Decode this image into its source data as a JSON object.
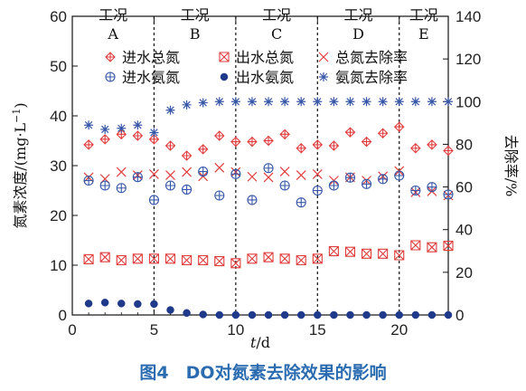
{
  "chart_data": {
    "type": "scatter",
    "title": "",
    "xlabel_var": "t",
    "xlabel_unit": "/d",
    "ylabel": "氮素浓度/(mg·L",
    "ylabel_sup": "−1",
    "ylabel_close": ")",
    "y2label": "去除率/%",
    "xlim": [
      0,
      23
    ],
    "ylim": [
      0,
      60
    ],
    "y2lim": [
      0,
      140
    ],
    "xticks": [
      "0",
      "5",
      "10",
      "15",
      "20"
    ],
    "yticks": [
      "0",
      "10",
      "20",
      "30",
      "40",
      "50",
      "60"
    ],
    "y2ticks": [
      "0",
      "20",
      "40",
      "60",
      "80",
      "100",
      "120",
      "140"
    ],
    "phases": [
      {
        "name": "工况",
        "id": "A"
      },
      {
        "name": "工况",
        "id": "B"
      },
      {
        "name": "工况",
        "id": "C"
      },
      {
        "name": "工况",
        "id": "D"
      },
      {
        "name": "工况",
        "id": "E"
      }
    ],
    "phase_boundaries": [
      5,
      10,
      15,
      20
    ],
    "series": [
      {
        "name": "进水总氮",
        "axis": "left",
        "color": "#e03c3c",
        "marker": "diamond-plus",
        "x": [
          1,
          2,
          3,
          4,
          5,
          6,
          7,
          8,
          9,
          10,
          11,
          12,
          13,
          14,
          15,
          16,
          17,
          18,
          19,
          20,
          21,
          22,
          23
        ],
        "y": [
          34.2,
          35.3,
          36.3,
          36.0,
          35.3,
          34.0,
          32.0,
          33.3,
          36.0,
          34.8,
          34.8,
          35.0,
          36.3,
          33.5,
          34.2,
          34.0,
          36.7,
          34.8,
          36.5,
          37.8,
          33.5,
          34.2,
          33.0
        ]
      },
      {
        "name": "出水总氮",
        "axis": "left",
        "color": "#e03c3c",
        "marker": "boxed-x",
        "x": [
          1,
          2,
          3,
          4,
          5,
          6,
          7,
          8,
          9,
          10,
          11,
          12,
          13,
          14,
          15,
          16,
          17,
          18,
          19,
          20,
          21,
          22,
          23
        ],
        "y": [
          11.2,
          11.6,
          11.0,
          11.3,
          11.3,
          11.3,
          11.0,
          11.0,
          10.8,
          10.4,
          11.3,
          11.6,
          11.3,
          11.0,
          11.3,
          12.8,
          12.7,
          12.3,
          12.3,
          12.0,
          14.0,
          13.6,
          13.9
        ]
      },
      {
        "name": "总氮去除率",
        "axis": "right",
        "color": "#e03c3c",
        "marker": "x",
        "x": [
          1,
          2,
          3,
          4,
          5,
          6,
          7,
          8,
          9,
          10,
          11,
          12,
          13,
          14,
          15,
          16,
          17,
          18,
          19,
          20,
          21,
          22,
          23
        ],
        "y": [
          64.5,
          63.8,
          67.0,
          65.5,
          66.0,
          65.5,
          67.0,
          65.0,
          69.0,
          67.0,
          64.8,
          64.5,
          67.2,
          65.5,
          66.0,
          63.0,
          64.5,
          63.0,
          65.0,
          67.5,
          57.5,
          58.0,
          56.0
        ]
      },
      {
        "name": "进水氨氮",
        "axis": "left",
        "color": "#3757a8",
        "marker": "circle-plus",
        "x": [
          1,
          2,
          3,
          4,
          5,
          6,
          7,
          8,
          9,
          10,
          11,
          12,
          13,
          14,
          15,
          16,
          17,
          18,
          19,
          20,
          21,
          22,
          23
        ],
        "y": [
          27.0,
          26.0,
          25.5,
          27.7,
          23.1,
          26.0,
          25.2,
          28.8,
          24.0,
          28.3,
          23.1,
          29.5,
          26.0,
          22.6,
          25.0,
          26.0,
          27.6,
          26.3,
          27.3,
          28.0,
          25.0,
          25.7,
          24.2
        ]
      },
      {
        "name": "出水氨氮",
        "axis": "left",
        "color": "#1f3a8a",
        "marker": "dot",
        "x": [
          1,
          2,
          3,
          4,
          5,
          6,
          7,
          8,
          9,
          10,
          11,
          12,
          13,
          14,
          15,
          16,
          17,
          18,
          19,
          20,
          21,
          22,
          23
        ],
        "y": [
          2.3,
          2.5,
          2.3,
          2.2,
          2.2,
          1.0,
          0.4,
          0.1,
          0.0,
          0.0,
          0.0,
          0.0,
          0.0,
          0.0,
          0.0,
          0.0,
          0.0,
          0.0,
          0.0,
          0.0,
          0.0,
          0.0,
          0.0
        ]
      },
      {
        "name": "氨氮去除率",
        "axis": "right",
        "color": "#3757a8",
        "marker": "star",
        "x": [
          1,
          2,
          3,
          4,
          5,
          6,
          7,
          8,
          9,
          10,
          11,
          12,
          13,
          14,
          15,
          16,
          17,
          18,
          19,
          20,
          21,
          22,
          23
        ],
        "y": [
          89.0,
          87.0,
          87.5,
          89.0,
          85.5,
          96.0,
          98.5,
          99.5,
          100,
          100,
          100,
          100,
          100,
          100,
          100,
          100,
          100,
          100,
          100,
          100,
          100,
          100,
          100
        ]
      }
    ]
  },
  "caption": "图4　DO对氮素去除效果的影响"
}
